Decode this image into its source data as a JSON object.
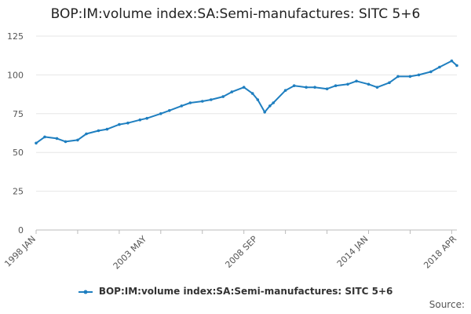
{
  "chart_data": {
    "type": "line",
    "title": "BOP:IM:volume index:SA:Semi-manufactures: SITC 5+6",
    "xlabel": "",
    "ylabel": "",
    "ylim": [
      0,
      125
    ],
    "y_ticks": [
      0,
      25,
      50,
      75,
      100,
      125
    ],
    "x_ticks": [
      "1998 JAN",
      "2003 MAY",
      "2008 SEP",
      "2014 JAN",
      "2018 APR"
    ],
    "grid": true,
    "legend_position": "bottom",
    "series": [
      {
        "name": "BOP:IM:volume index:SA:Semi-manufactures: SITC 5+6",
        "color": "#1f7fc0",
        "points": [
          [
            "1998 JAN",
            56
          ],
          [
            "1998 JUN",
            60
          ],
          [
            "1999 JAN",
            59
          ],
          [
            "1999 JUN",
            57
          ],
          [
            "2000 JAN",
            58
          ],
          [
            "2000 JUN",
            62
          ],
          [
            "2001 JAN",
            64
          ],
          [
            "2001 JUN",
            65
          ],
          [
            "2002 JAN",
            68
          ],
          [
            "2002 JUN",
            69
          ],
          [
            "2003 JAN",
            71
          ],
          [
            "2003 MAY",
            72
          ],
          [
            "2004 JAN",
            75
          ],
          [
            "2004 JUN",
            77
          ],
          [
            "2005 JAN",
            80
          ],
          [
            "2005 JUN",
            82
          ],
          [
            "2006 JAN",
            83
          ],
          [
            "2006 JUN",
            84
          ],
          [
            "2007 JAN",
            86
          ],
          [
            "2007 JUN",
            89
          ],
          [
            "2008 JAN",
            92
          ],
          [
            "2008 JUN",
            88
          ],
          [
            "2008 SEP",
            84
          ],
          [
            "2009 JAN",
            76
          ],
          [
            "2009 APR",
            80
          ],
          [
            "2009 JUN",
            82
          ],
          [
            "2010 JAN",
            90
          ],
          [
            "2010 JUN",
            93
          ],
          [
            "2011 JAN",
            92
          ],
          [
            "2011 JUN",
            92
          ],
          [
            "2012 JAN",
            91
          ],
          [
            "2012 JUN",
            93
          ],
          [
            "2013 JAN",
            94
          ],
          [
            "2013 JUN",
            96
          ],
          [
            "2014 JAN",
            94
          ],
          [
            "2014 JUN",
            92
          ],
          [
            "2015 JAN",
            95
          ],
          [
            "2015 JUN",
            99
          ],
          [
            "2016 JAN",
            99
          ],
          [
            "2016 JUN",
            100
          ],
          [
            "2017 JAN",
            102
          ],
          [
            "2017 JUN",
            105
          ],
          [
            "2018 JAN",
            109
          ],
          [
            "2018 APR",
            106
          ]
        ]
      }
    ]
  },
  "legend": {
    "label": "BOP:IM:volume index:SA:Semi-manufactures: SITC 5+6"
  },
  "footer": {
    "source_label": "Source:"
  }
}
